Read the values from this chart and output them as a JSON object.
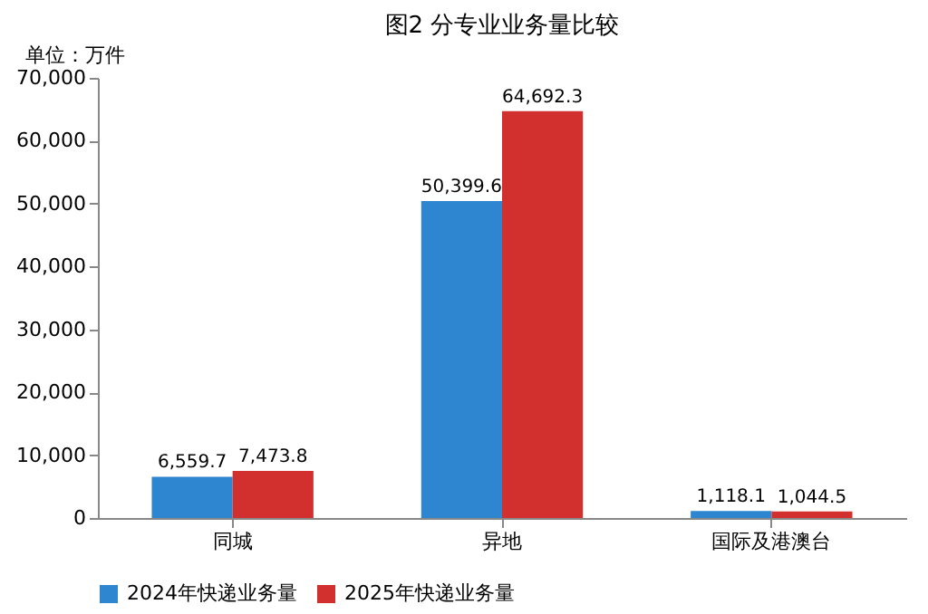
{
  "chart_data": {
    "type": "bar",
    "title": "图2 分专业业务量比较",
    "annotations": [
      "单位：万件"
    ],
    "categories": [
      "同城",
      "异地",
      "国际及港澳台"
    ],
    "series": [
      {
        "name": "2024年快递业务量",
        "color": "#2e86d0",
        "values": [
          6559.7,
          50399.6,
          1118.1
        ],
        "value_labels": [
          "6,559.7",
          "50,399.6",
          "1,118.1"
        ]
      },
      {
        "name": "2025年快递业务量",
        "color": "#d22f2f",
        "values": [
          7473.8,
          64692.3,
          1044.5
        ],
        "value_labels": [
          "7,473.8",
          "64,692.3",
          "1,044.5"
        ]
      }
    ],
    "ylim": [
      0,
      70000
    ],
    "yticks": [
      0,
      {
        "value": 10000,
        "label": "10,000"
      },
      {
        "value": 20000,
        "label": "20,000"
      },
      {
        "value": 30000,
        "label": "30,000"
      },
      {
        "value": 40000,
        "label": "40,000"
      },
      {
        "value": 50000,
        "label": "50,000"
      },
      {
        "value": 60000,
        "label": "60,000"
      },
      {
        "value": 70000,
        "label": "70,000"
      }
    ],
    "grid": false,
    "legend": "bottom"
  }
}
